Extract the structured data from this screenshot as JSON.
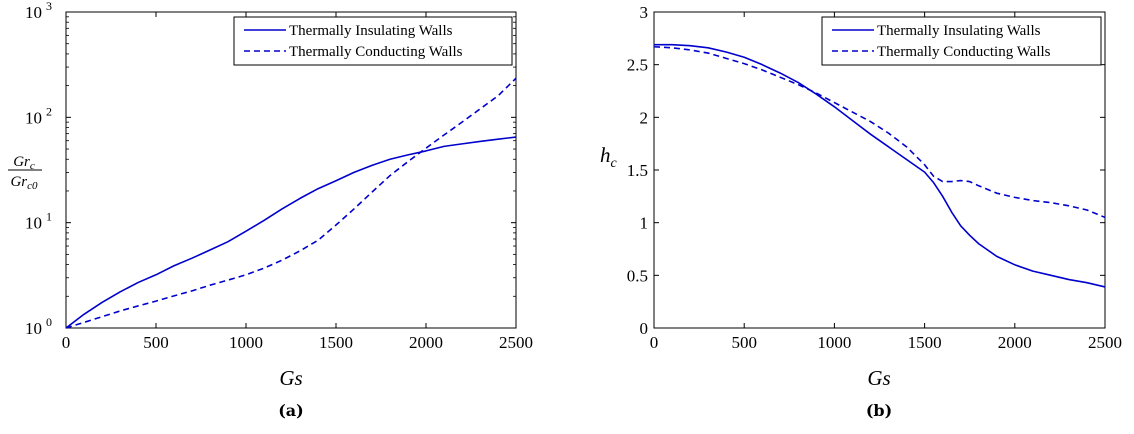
{
  "chart_data": [
    {
      "type": "line",
      "panel_label": "(a)",
      "xlabel": "Gs",
      "ylabel": {
        "numerator": "Gr",
        "numerator_sub": "c",
        "denominator": "Gr",
        "denominator_sub": "c0"
      },
      "xlim": [
        0,
        2500
      ],
      "ylim": [
        1,
        1000
      ],
      "yscale": "log",
      "x_ticks": [
        "0",
        "500",
        "1000",
        "1500",
        "2000",
        "2500"
      ],
      "y_ticks": [
        {
          "base": "10",
          "exp": "0"
        },
        {
          "base": "10",
          "exp": "1"
        },
        {
          "base": "10",
          "exp": "2"
        },
        {
          "base": "10",
          "exp": "3"
        }
      ],
      "grid": false,
      "legend_position": "top-right",
      "series": [
        {
          "name": "Thermally Insulating Walls",
          "style": "solid",
          "color": "#0000CC",
          "x": [
            0,
            100,
            200,
            300,
            400,
            500,
            600,
            700,
            800,
            900,
            1000,
            1100,
            1200,
            1300,
            1400,
            1500,
            1600,
            1700,
            1800,
            1900,
            2000,
            2100,
            2200,
            2300,
            2400,
            2500
          ],
          "y": [
            1,
            1.35,
            1.75,
            2.2,
            2.7,
            3.2,
            3.9,
            4.6,
            5.5,
            6.6,
            8.3,
            10.5,
            13.5,
            17,
            21,
            25,
            30,
            35,
            40,
            44,
            48,
            53,
            56,
            59,
            62,
            65
          ]
        },
        {
          "name": "Thermally Conducting Walls",
          "style": "dashed",
          "color": "#0000CC",
          "x": [
            0,
            100,
            200,
            300,
            400,
            500,
            600,
            700,
            800,
            900,
            1000,
            1100,
            1200,
            1300,
            1400,
            1500,
            1600,
            1700,
            1800,
            1900,
            2000,
            2100,
            2200,
            2300,
            2400,
            2500
          ],
          "y": [
            1,
            1.13,
            1.28,
            1.45,
            1.62,
            1.8,
            2.02,
            2.25,
            2.55,
            2.85,
            3.2,
            3.7,
            4.4,
            5.4,
            6.8,
            9.5,
            13.5,
            19.5,
            28,
            38,
            51,
            68,
            90,
            120,
            160,
            235
          ]
        }
      ]
    },
    {
      "type": "line",
      "panel_label": "(b)",
      "xlabel": "Gs",
      "ylabel": {
        "base": "h",
        "sub": "c"
      },
      "xlim": [
        0,
        2500
      ],
      "ylim": [
        0,
        3
      ],
      "yscale": "linear",
      "x_ticks": [
        "0",
        "500",
        "1000",
        "1500",
        "2000",
        "2500"
      ],
      "y_ticks": [
        "0",
        "0.5",
        "1",
        "1.5",
        "2",
        "2.5",
        "3"
      ],
      "grid": false,
      "legend_position": "top-right",
      "series": [
        {
          "name": "Thermally Insulating Walls",
          "style": "solid",
          "color": "#0000CC",
          "x": [
            0,
            100,
            200,
            300,
            400,
            500,
            600,
            700,
            800,
            900,
            1000,
            1100,
            1200,
            1300,
            1400,
            1500,
            1550,
            1600,
            1650,
            1700,
            1750,
            1800,
            1900,
            2000,
            2100,
            2200,
            2300,
            2400,
            2500
          ],
          "y": [
            2.69,
            2.69,
            2.68,
            2.66,
            2.62,
            2.57,
            2.5,
            2.42,
            2.33,
            2.22,
            2.1,
            1.97,
            1.84,
            1.72,
            1.6,
            1.48,
            1.38,
            1.25,
            1.1,
            0.97,
            0.88,
            0.8,
            0.68,
            0.6,
            0.54,
            0.5,
            0.46,
            0.43,
            0.39
          ]
        },
        {
          "name": "Thermally Conducting Walls",
          "style": "dashed",
          "color": "#0000CC",
          "x": [
            0,
            100,
            200,
            300,
            400,
            500,
            600,
            700,
            800,
            900,
            1000,
            1100,
            1200,
            1300,
            1400,
            1500,
            1550,
            1600,
            1650,
            1700,
            1750,
            1800,
            1900,
            2000,
            2100,
            2200,
            2300,
            2400,
            2500
          ],
          "y": [
            2.67,
            2.66,
            2.64,
            2.61,
            2.56,
            2.51,
            2.45,
            2.38,
            2.31,
            2.23,
            2.14,
            2.05,
            1.96,
            1.85,
            1.72,
            1.55,
            1.44,
            1.39,
            1.39,
            1.4,
            1.39,
            1.35,
            1.28,
            1.24,
            1.21,
            1.19,
            1.16,
            1.12,
            1.05
          ]
        }
      ]
    }
  ]
}
